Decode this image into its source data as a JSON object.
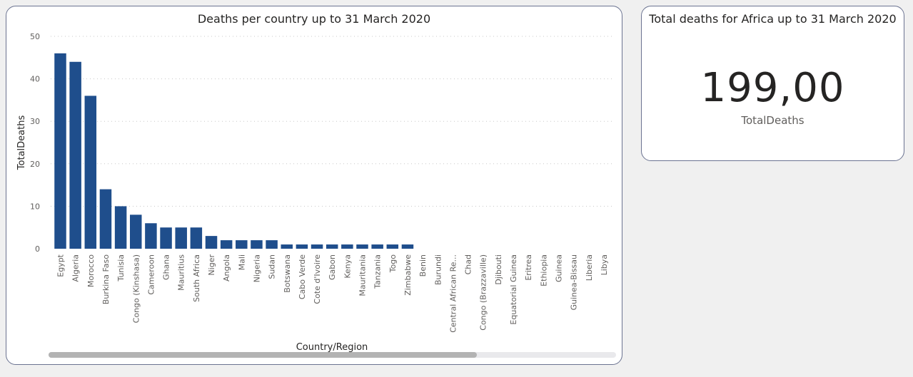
{
  "chart_card": {
    "title": "Deaths per country up to 31 March 2020"
  },
  "kpi_card": {
    "title": "Total deaths for Africa up to 31 March 2020",
    "value": "199,00",
    "label": "TotalDeaths"
  },
  "colors": {
    "bar": "#1f4e8c",
    "background": "#f0f0f0",
    "card_border": "#6b7391"
  },
  "chart_data": {
    "type": "bar",
    "title": "Deaths per country up to 31 March 2020",
    "xlabel": "Country/Region",
    "ylabel": "TotalDeaths",
    "ylim": [
      0,
      50
    ],
    "yticks": [
      0,
      10,
      20,
      30,
      40,
      50
    ],
    "grid": true,
    "categories": [
      "Egypt",
      "Algeria",
      "Morocco",
      "Burkina Faso",
      "Tunisia",
      "Congo (Kinshasa)",
      "Cameroon",
      "Ghana",
      "Mauritius",
      "South Africa",
      "Niger",
      "Angola",
      "Mali",
      "Nigeria",
      "Sudan",
      "Botswana",
      "Cabo Verde",
      "Cote d'Ivoire",
      "Gabon",
      "Kenya",
      "Mauritania",
      "Tanzania",
      "Togo",
      "Zimbabwe",
      "Benin",
      "Burundi",
      "Central African Re...",
      "Chad",
      "Congo (Brazzaville)",
      "Djibouti",
      "Equatorial Guinea",
      "Eritrea",
      "Ethiopia",
      "Guinea",
      "Guinea-Bissau",
      "Liberia",
      "Libya"
    ],
    "values": [
      46,
      44,
      36,
      14,
      10,
      8,
      6,
      5,
      5,
      5,
      3,
      2,
      2,
      2,
      2,
      1,
      1,
      1,
      1,
      1,
      1,
      1,
      1,
      1,
      0,
      0,
      0,
      0,
      0,
      0,
      0,
      0,
      0,
      0,
      0,
      0,
      0
    ]
  }
}
